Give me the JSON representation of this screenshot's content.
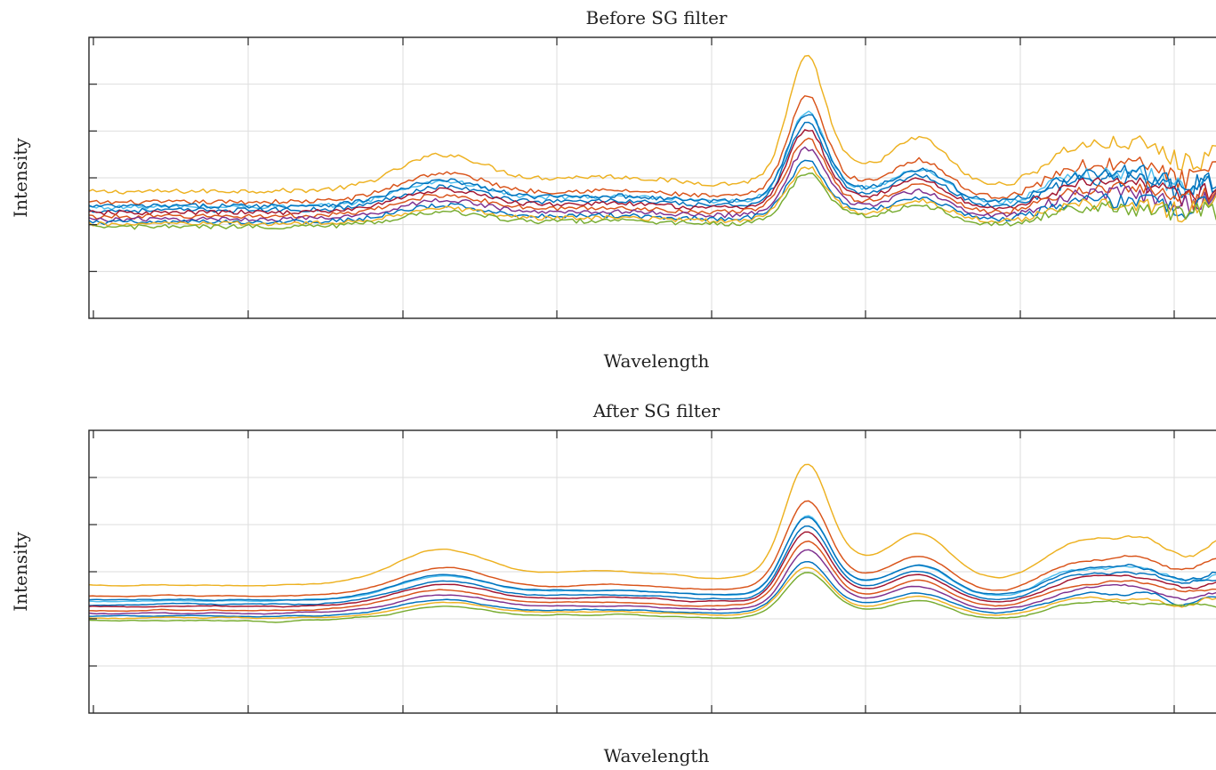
{
  "chart_data": [
    {
      "type": "line",
      "title": "Before SG filter",
      "xlabel": "Wavelength",
      "ylabel": "Intensity",
      "x_tick_labels": [],
      "y_tick_labels": [],
      "xlim": [
        0,
        1
      ],
      "ylim": [
        0,
        6
      ],
      "grid": true,
      "smoothed": false,
      "series": [
        {
          "color": "#EDB120",
          "offset": 1.05,
          "gain": 1.45
        },
        {
          "color": "#D95319",
          "offset": 0.82,
          "gain": 1.15
        },
        {
          "color": "#4DBEEE",
          "offset": 0.72,
          "gain": 1.02
        },
        {
          "color": "#0072BD",
          "offset": 0.74,
          "gain": 1.0
        },
        {
          "color": "#0072BD",
          "offset": 0.65,
          "gain": 0.94
        },
        {
          "color": "#A2142F",
          "offset": 0.6,
          "gain": 0.9
        },
        {
          "color": "#D95319",
          "offset": 0.52,
          "gain": 0.84
        },
        {
          "color": "#7E2F8E",
          "offset": 0.46,
          "gain": 0.76
        },
        {
          "color": "#0072BD",
          "offset": 0.4,
          "gain": 0.66
        },
        {
          "color": "#EDB120",
          "offset": 0.36,
          "gain": 0.62
        },
        {
          "color": "#77AC30",
          "offset": 0.3,
          "gain": 0.58
        }
      ]
    },
    {
      "type": "line",
      "title": "After SG filter",
      "xlabel": "Wavelength",
      "ylabel": "Intensity",
      "x_tick_labels": [],
      "y_tick_labels": [],
      "xlim": [
        0,
        1
      ],
      "ylim": [
        0,
        6
      ],
      "grid": true,
      "smoothed": true,
      "series": [
        {
          "color": "#EDB120",
          "offset": 1.05,
          "gain": 1.45
        },
        {
          "color": "#D95319",
          "offset": 0.82,
          "gain": 1.15
        },
        {
          "color": "#4DBEEE",
          "offset": 0.72,
          "gain": 1.02
        },
        {
          "color": "#0072BD",
          "offset": 0.74,
          "gain": 1.0
        },
        {
          "color": "#0072BD",
          "offset": 0.65,
          "gain": 0.94
        },
        {
          "color": "#A2142F",
          "offset": 0.6,
          "gain": 0.9
        },
        {
          "color": "#D95319",
          "offset": 0.52,
          "gain": 0.84
        },
        {
          "color": "#7E2F8E",
          "offset": 0.46,
          "gain": 0.76
        },
        {
          "color": "#0072BD",
          "offset": 0.4,
          "gain": 0.66
        },
        {
          "color": "#EDB120",
          "offset": 0.36,
          "gain": 0.62
        },
        {
          "color": "#77AC30",
          "offset": 0.3,
          "gain": 0.58
        }
      ]
    }
  ]
}
